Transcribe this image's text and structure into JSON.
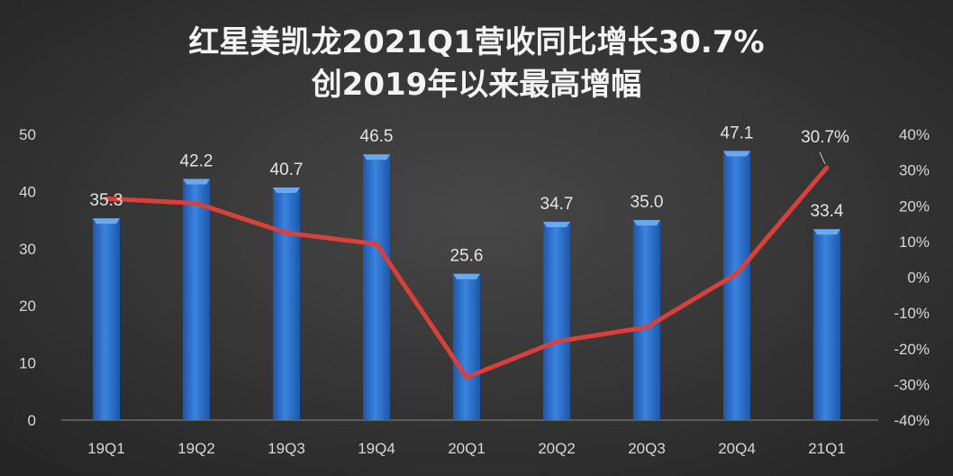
{
  "chart_data": {
    "type": "bar+line",
    "title_lines": [
      "红星美凯龙2021Q1营收同比增长30.7%",
      "创2019年以来最高增幅"
    ],
    "categories": [
      "19Q1",
      "19Q2",
      "19Q3",
      "19Q4",
      "20Q1",
      "20Q2",
      "20Q3",
      "20Q4",
      "21Q1"
    ],
    "series": [
      {
        "type": "bar",
        "axis": "left",
        "values": [
          35.3,
          42.2,
          40.7,
          46.5,
          25.6,
          34.7,
          35.0,
          47.1,
          33.4
        ],
        "labels": [
          "35.3",
          "42.2",
          "40.7",
          "46.5",
          "25.6",
          "34.7",
          "35.0",
          "47.1",
          "33.4"
        ],
        "color": "#2f72d0"
      },
      {
        "type": "line",
        "axis": "right",
        "values": [
          22,
          20.7,
          12.4,
          9.3,
          -28,
          -18,
          -14,
          1,
          30.7
        ],
        "point_label": {
          "index": 8,
          "text": "30.7%"
        },
        "color": "#d9403a"
      }
    ],
    "left_axis": {
      "ylim": [
        0,
        50
      ],
      "ticks": [
        "0",
        "10",
        "20",
        "30",
        "40",
        "50"
      ]
    },
    "right_axis": {
      "ylim": [
        -40,
        40
      ],
      "ticks": [
        "-40%",
        "-30%",
        "-20%",
        "-10%",
        "0%",
        "10%",
        "20%",
        "30%",
        "40%"
      ]
    },
    "grid": false,
    "legend": "none",
    "background": "#333333"
  }
}
